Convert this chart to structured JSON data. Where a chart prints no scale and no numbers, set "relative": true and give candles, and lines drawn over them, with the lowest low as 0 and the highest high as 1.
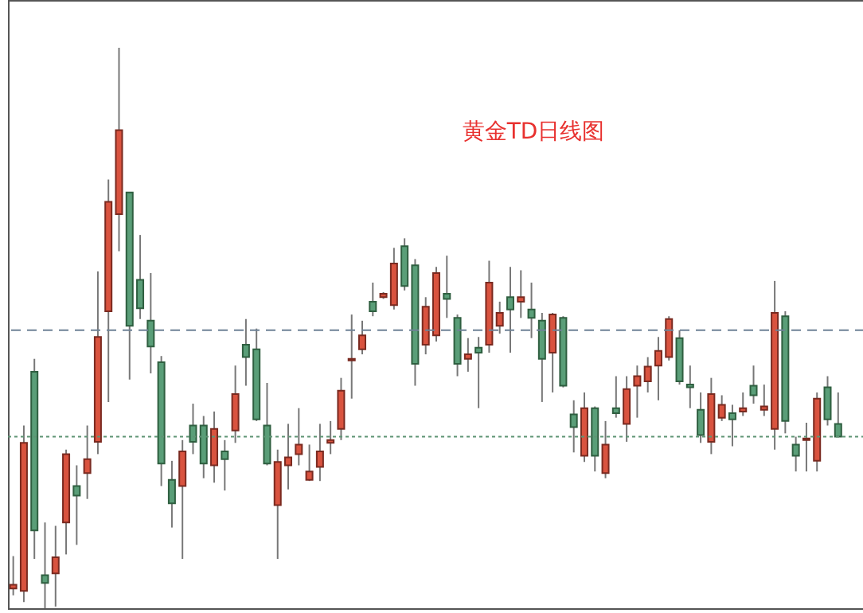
{
  "chart_data": {
    "type": "candlestick",
    "title": "黄金TD日线图",
    "relative": true,
    "categories": [
      null,
      null,
      null,
      null,
      null,
      null,
      null,
      null,
      null,
      null,
      null,
      null,
      null,
      null,
      null,
      null,
      null,
      null,
      null,
      null,
      null,
      null,
      null,
      null,
      null,
      null,
      null,
      null,
      null,
      null,
      null,
      null,
      null,
      null,
      null,
      null,
      null,
      null,
      null,
      null,
      null,
      null,
      null,
      null,
      null,
      null,
      null,
      null,
      null,
      null,
      null,
      null,
      null,
      null,
      null,
      null,
      null,
      null,
      null,
      null,
      null,
      null,
      null,
      null,
      null,
      null,
      null,
      null,
      null,
      null,
      null,
      null,
      null,
      null,
      null,
      null,
      null,
      null,
      null
    ],
    "ohlc": [
      [
        0.035,
        0.093,
        0.023,
        0.042
      ],
      [
        0.031,
        0.326,
        0.011,
        0.295
      ],
      [
        0.422,
        0.445,
        0.088,
        0.139
      ],
      [
        0.059,
        0.153,
        0,
        0.045
      ],
      [
        0.062,
        0.147,
        0.003,
        0.091
      ],
      [
        0.153,
        0.283,
        0.096,
        0.275
      ],
      [
        0.218,
        0.255,
        0.113,
        0.201
      ],
      [
        0.241,
        0.326,
        0.195,
        0.266
      ],
      [
        0.297,
        0.601,
        0.275,
        0.484
      ],
      [
        0.53,
        0.765,
        0.368,
        0.725
      ],
      [
        0.703,
        1,
        0.637,
        0.853
      ],
      [
        0.742,
        0.742,
        0.408,
        0.504
      ],
      [
        0.586,
        0.666,
        0.516,
        0.535
      ],
      [
        0.513,
        0.598,
        0.419,
        0.467
      ],
      [
        0.439,
        0.45,
        0.218,
        0.258
      ],
      [
        0.229,
        0.263,
        0.144,
        0.187
      ],
      [
        0.218,
        0.3,
        0.088,
        0.28
      ],
      [
        0.326,
        0.365,
        0.275,
        0.297
      ],
      [
        0.326,
        0.343,
        0.232,
        0.258
      ],
      [
        0.255,
        0.351,
        0.224,
        0.32
      ],
      [
        0.28,
        0.3,
        0.21,
        0.266
      ],
      [
        0.317,
        0.433,
        0.295,
        0.382
      ],
      [
        0.47,
        0.516,
        0.397,
        0.448
      ],
      [
        0.462,
        0.499,
        0.334,
        0.337
      ],
      [
        0.326,
        0.402,
        0.255,
        0.258
      ],
      [
        0.184,
        0.283,
        0.088,
        0.261
      ],
      [
        0.255,
        0.329,
        0.212,
        0.269
      ],
      [
        0.275,
        0.357,
        0.255,
        0.292
      ],
      [
        0.229,
        0.292,
        0.227,
        0.244
      ],
      [
        0.252,
        0.329,
        0.227,
        0.28
      ],
      [
        0.295,
        0.334,
        0.275,
        0.3
      ],
      [
        0.32,
        0.411,
        0.3,
        0.388
      ],
      [
        0.442,
        0.524,
        0.374,
        0.445
      ],
      [
        0.462,
        0.513,
        0.453,
        0.487
      ],
      [
        0.547,
        0.581,
        0.521,
        0.53
      ],
      [
        0.555,
        0.564,
        0.552,
        0.561
      ],
      [
        0.541,
        0.643,
        0.533,
        0.615
      ],
      [
        0.646,
        0.66,
        0.567,
        0.575
      ],
      [
        0.612,
        0.623,
        0.397,
        0.436
      ],
      [
        0.47,
        0.555,
        0.453,
        0.538
      ],
      [
        0.487,
        0.609,
        0.476,
        0.598
      ],
      [
        0.561,
        0.629,
        0.518,
        0.552
      ],
      [
        0.518,
        0.524,
        0.414,
        0.436
      ],
      [
        0.445,
        0.482,
        0.422,
        0.453
      ],
      [
        0.465,
        0.484,
        0.357,
        0.456
      ],
      [
        0.47,
        0.62,
        0.456,
        0.581
      ],
      [
        0.504,
        0.547,
        0.49,
        0.527
      ],
      [
        0.555,
        0.609,
        0.456,
        0.533
      ],
      [
        0.547,
        0.603,
        0.518,
        0.555
      ],
      [
        0.533,
        0.581,
        0.482,
        0.518
      ],
      [
        0.513,
        0.527,
        0.368,
        0.445
      ],
      [
        0.456,
        0.527,
        0.385,
        0.524
      ],
      [
        0.518,
        0.521,
        0.394,
        0.397
      ],
      [
        0.346,
        0.371,
        0.278,
        0.323
      ],
      [
        0.272,
        0.385,
        0.261,
        0.357
      ],
      [
        0.357,
        0.36,
        0.244,
        0.272
      ],
      [
        0.241,
        0.334,
        0.232,
        0.292
      ],
      [
        0.357,
        0.414,
        0.34,
        0.348
      ],
      [
        0.329,
        0.414,
        0.297,
        0.391
      ],
      [
        0.397,
        0.433,
        0.34,
        0.414
      ],
      [
        0.405,
        0.448,
        0.385,
        0.431
      ],
      [
        0.433,
        0.484,
        0.371,
        0.459
      ],
      [
        0.448,
        0.521,
        0.442,
        0.516
      ],
      [
        0.482,
        0.496,
        0.399,
        0.405
      ],
      [
        0.399,
        0.433,
        0.357,
        0.394
      ],
      [
        0.354,
        0.385,
        0.295,
        0.309
      ],
      [
        0.297,
        0.411,
        0.275,
        0.382
      ],
      [
        0.34,
        0.38,
        0.334,
        0.363
      ],
      [
        0.348,
        0.363,
        0.289,
        0.337
      ],
      [
        0.351,
        0.385,
        0.343,
        0.357
      ],
      [
        0.397,
        0.433,
        0.365,
        0.38
      ],
      [
        0.354,
        0.399,
        0.343,
        0.36
      ],
      [
        0.32,
        0.584,
        0.283,
        0.527
      ],
      [
        0.521,
        0.53,
        0.312,
        0.334
      ],
      [
        0.292,
        0.306,
        0.244,
        0.272
      ],
      [
        0.3,
        0.331,
        0.244,
        0.303
      ],
      [
        0.263,
        0.385,
        0.244,
        0.374
      ],
      [
        0.394,
        0.414,
        0.326,
        0.337
      ],
      [
        0.329,
        0.385,
        0.306,
        0.306
      ]
    ],
    "ref_lines": [
      {
        "axis": "y",
        "value": 0.496,
        "color": "#6f8296",
        "line_style": "dashed"
      },
      {
        "axis": "y",
        "value": 0.306,
        "color": "#5e9474",
        "line_style": "dotted"
      }
    ]
  }
}
